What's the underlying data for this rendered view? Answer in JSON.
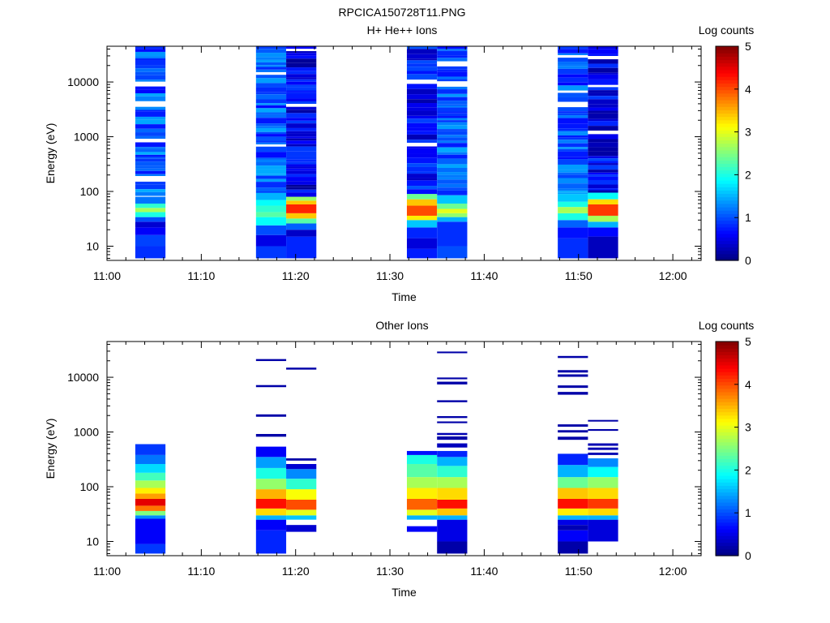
{
  "title": "RPCICA150728T11.PNG",
  "colorbar_range": [
    0,
    5
  ],
  "colorbar_ticks": [
    "0",
    "1",
    "2",
    "3",
    "4",
    "5"
  ],
  "chart_data": [
    {
      "type": "heatmap",
      "title": "H+ He++ Ions",
      "xlabel": "Time",
      "ylabel": "Energy (eV)",
      "colorbar_label": "Log counts",
      "x_ticks": [
        "11:00",
        "11:10",
        "11:20",
        "11:30",
        "11:40",
        "11:50",
        "12:00"
      ],
      "xlim": [
        "11:00",
        "12:03"
      ],
      "y_ticks": [
        "10",
        "100",
        "1000",
        "10000"
      ],
      "ylim": [
        5.5,
        45000
      ],
      "y_scale": "log",
      "colormap": "jet",
      "columns": [
        {
          "start": "11:03.0",
          "end": "11:06.2",
          "seed": 11,
          "bands": [
            {
              "lo": 6,
              "hi": 10,
              "v": 0.85
            },
            {
              "lo": 10,
              "hi": 16,
              "v": 0.95
            },
            {
              "lo": 16,
              "hi": 22,
              "v": 0.6
            },
            {
              "lo": 22,
              "hi": 28,
              "v": 0.4
            },
            {
              "lo": 28,
              "hi": 34,
              "v": 1.0
            },
            {
              "lo": 34,
              "hi": 42,
              "v": 2.0
            },
            {
              "lo": 42,
              "hi": 50,
              "v": 2.7
            },
            {
              "lo": 50,
              "hi": 60,
              "v": 2.1
            },
            {
              "lo": 60,
              "hi": 80,
              "v": 1.2
            },
            {
              "lo": 80,
              "hi": 45000,
              "v": 1.05
            }
          ]
        },
        {
          "start": "11:15.8",
          "end": "11:19.0",
          "seed": 23,
          "bands": [
            {
              "lo": 6,
              "hi": 10,
              "v": 0.9
            },
            {
              "lo": 10,
              "hi": 16,
              "v": 0.5
            },
            {
              "lo": 16,
              "hi": 24,
              "v": 1.0
            },
            {
              "lo": 24,
              "hi": 34,
              "v": 1.9
            },
            {
              "lo": 34,
              "hi": 42,
              "v": 2.3
            },
            {
              "lo": 42,
              "hi": 55,
              "v": 2.1
            },
            {
              "lo": 55,
              "hi": 70,
              "v": 1.9
            },
            {
              "lo": 70,
              "hi": 95,
              "v": 1.5
            },
            {
              "lo": 95,
              "hi": 45000,
              "v": 1.05
            }
          ]
        },
        {
          "start": "11:19.0",
          "end": "11:22.2",
          "seed": 37,
          "bands": [
            {
              "lo": 6,
              "hi": 15,
              "v": 0.8
            },
            {
              "lo": 15,
              "hi": 20,
              "v": 0.35
            },
            {
              "lo": 20,
              "hi": 26,
              "v": 1.1
            },
            {
              "lo": 26,
              "hi": 32,
              "v": 2.3
            },
            {
              "lo": 32,
              "hi": 40,
              "v": 3.4
            },
            {
              "lo": 40,
              "hi": 58,
              "v": 4.2
            },
            {
              "lo": 58,
              "hi": 68,
              "v": 3.4
            },
            {
              "lo": 68,
              "hi": 80,
              "v": 2.6
            },
            {
              "lo": 80,
              "hi": 45000,
              "v": 0.5
            }
          ]
        },
        {
          "start": "11:31.8",
          "end": "11:35.0",
          "seed": 41,
          "bands": [
            {
              "lo": 6,
              "hi": 9,
              "v": 0.75
            },
            {
              "lo": 9,
              "hi": 14,
              "v": 0.45
            },
            {
              "lo": 14,
              "hi": 22,
              "v": 0.8
            },
            {
              "lo": 22,
              "hi": 30,
              "v": 1.6
            },
            {
              "lo": 30,
              "hi": 36,
              "v": 3.2
            },
            {
              "lo": 36,
              "hi": 55,
              "v": 4.0
            },
            {
              "lo": 55,
              "hi": 72,
              "v": 3.4
            },
            {
              "lo": 72,
              "hi": 90,
              "v": 2.4
            },
            {
              "lo": 90,
              "hi": 45000,
              "v": 0.6
            }
          ]
        },
        {
          "start": "11:35.0",
          "end": "11:38.2",
          "seed": 53,
          "bands": [
            {
              "lo": 6,
              "hi": 10,
              "v": 1.0
            },
            {
              "lo": 10,
              "hi": 28,
              "v": 0.85
            },
            {
              "lo": 28,
              "hi": 34,
              "v": 1.5
            },
            {
              "lo": 34,
              "hi": 40,
              "v": 2.6
            },
            {
              "lo": 40,
              "hi": 48,
              "v": 3.0
            },
            {
              "lo": 48,
              "hi": 60,
              "v": 2.4
            },
            {
              "lo": 60,
              "hi": 85,
              "v": 1.6
            },
            {
              "lo": 85,
              "hi": 45000,
              "v": 1.05
            }
          ]
        },
        {
          "start": "11:47.8",
          "end": "11:51.0",
          "seed": 67,
          "bands": [
            {
              "lo": 6,
              "hi": 14,
              "v": 0.85
            },
            {
              "lo": 14,
              "hi": 22,
              "v": 0.7
            },
            {
              "lo": 22,
              "hi": 30,
              "v": 1.1
            },
            {
              "lo": 30,
              "hi": 40,
              "v": 2.0
            },
            {
              "lo": 40,
              "hi": 52,
              "v": 2.7
            },
            {
              "lo": 52,
              "hi": 65,
              "v": 2.0
            },
            {
              "lo": 65,
              "hi": 90,
              "v": 1.6
            },
            {
              "lo": 90,
              "hi": 45000,
              "v": 1.05
            }
          ]
        },
        {
          "start": "11:51.0",
          "end": "11:54.2",
          "seed": 79,
          "bands": [
            {
              "lo": 6,
              "hi": 15,
              "v": 0.3
            },
            {
              "lo": 15,
              "hi": 22,
              "v": 0.65
            },
            {
              "lo": 22,
              "hi": 28,
              "v": 1.5
            },
            {
              "lo": 28,
              "hi": 36,
              "v": 2.7
            },
            {
              "lo": 36,
              "hi": 58,
              "v": 4.1
            },
            {
              "lo": 58,
              "hi": 72,
              "v": 3.3
            },
            {
              "lo": 72,
              "hi": 95,
              "v": 1.9
            },
            {
              "lo": 95,
              "hi": 45000,
              "v": 0.55
            }
          ]
        }
      ]
    },
    {
      "type": "heatmap",
      "title": "Other Ions",
      "xlabel": "Time",
      "ylabel": "Energy (eV)",
      "colorbar_label": "Log counts",
      "x_ticks": [
        "11:00",
        "11:10",
        "11:20",
        "11:30",
        "11:40",
        "11:50",
        "12:00"
      ],
      "xlim": [
        "11:00",
        "12:03"
      ],
      "y_ticks": [
        "10",
        "100",
        "1000",
        "10000"
      ],
      "ylim": [
        5.5,
        45000
      ],
      "y_scale": "log",
      "colormap": "jet",
      "columns": [
        {
          "start": "11:03.0",
          "end": "11:06.2",
          "bands": [
            {
              "lo": 6,
              "hi": 9,
              "v": 0.9
            },
            {
              "lo": 9,
              "hi": 26,
              "v": 0.6
            },
            {
              "lo": 26,
              "hi": 30,
              "v": 1.3
            },
            {
              "lo": 30,
              "hi": 36,
              "v": 2.5
            },
            {
              "lo": 36,
              "hi": 45,
              "v": 3.8
            },
            {
              "lo": 45,
              "hi": 60,
              "v": 4.5
            },
            {
              "lo": 60,
              "hi": 75,
              "v": 3.6
            },
            {
              "lo": 75,
              "hi": 95,
              "v": 3.2
            },
            {
              "lo": 95,
              "hi": 130,
              "v": 2.7
            },
            {
              "lo": 130,
              "hi": 180,
              "v": 2.2
            },
            {
              "lo": 180,
              "hi": 260,
              "v": 1.7
            },
            {
              "lo": 260,
              "hi": 380,
              "v": 1.2
            },
            {
              "lo": 380,
              "hi": 600,
              "v": 0.9
            }
          ]
        },
        {
          "start": "11:15.8",
          "end": "11:19.0",
          "bands": [
            {
              "lo": 6,
              "hi": 16,
              "v": 0.8
            },
            {
              "lo": 16,
              "hi": 25,
              "v": 0.6
            },
            {
              "lo": 25,
              "hi": 30,
              "v": 1.5
            },
            {
              "lo": 30,
              "hi": 40,
              "v": 3.3
            },
            {
              "lo": 40,
              "hi": 60,
              "v": 4.3
            },
            {
              "lo": 60,
              "hi": 90,
              "v": 3.5
            },
            {
              "lo": 90,
              "hi": 140,
              "v": 2.6
            },
            {
              "lo": 140,
              "hi": 220,
              "v": 2.0
            },
            {
              "lo": 220,
              "hi": 350,
              "v": 1.4
            },
            {
              "lo": 350,
              "hi": 540,
              "v": 0.6
            },
            {
              "lo": 820,
              "hi": 920,
              "v": 0.2
            },
            {
              "lo": 1900,
              "hi": 2100,
              "v": 0.2
            },
            {
              "lo": 6600,
              "hi": 7200,
              "v": 0.2
            },
            {
              "lo": 19800,
              "hi": 21500,
              "v": 0.2
            }
          ]
        },
        {
          "start": "11:19.0",
          "end": "11:22.2",
          "bands": [
            {
              "lo": 15,
              "hi": 20,
              "v": 0.4
            },
            {
              "lo": 25,
              "hi": 30,
              "v": 1.6
            },
            {
              "lo": 30,
              "hi": 38,
              "v": 3.0
            },
            {
              "lo": 38,
              "hi": 58,
              "v": 4.0
            },
            {
              "lo": 58,
              "hi": 90,
              "v": 3.1
            },
            {
              "lo": 90,
              "hi": 140,
              "v": 2.1
            },
            {
              "lo": 140,
              "hi": 210,
              "v": 1.3
            },
            {
              "lo": 210,
              "hi": 260,
              "v": 0.4
            },
            {
              "lo": 300,
              "hi": 330,
              "v": 0.2
            },
            {
              "lo": 13800,
              "hi": 15000,
              "v": 0.2
            }
          ]
        },
        {
          "start": "11:31.8",
          "end": "11:35.0",
          "bands": [
            {
              "lo": 15,
              "hi": 19,
              "v": 0.6
            },
            {
              "lo": 25,
              "hi": 30,
              "v": 1.5
            },
            {
              "lo": 30,
              "hi": 38,
              "v": 3.0
            },
            {
              "lo": 38,
              "hi": 60,
              "v": 3.9
            },
            {
              "lo": 60,
              "hi": 95,
              "v": 3.2
            },
            {
              "lo": 95,
              "hi": 150,
              "v": 2.7
            },
            {
              "lo": 150,
              "hi": 260,
              "v": 2.3
            },
            {
              "lo": 260,
              "hi": 380,
              "v": 2.0
            },
            {
              "lo": 380,
              "hi": 450,
              "v": 0.7
            }
          ]
        },
        {
          "start": "11:35.0",
          "end": "11:38.2",
          "bands": [
            {
              "lo": 6,
              "hi": 10,
              "v": 0.2
            },
            {
              "lo": 10,
              "hi": 25,
              "v": 0.5
            },
            {
              "lo": 25,
              "hi": 30,
              "v": 1.5
            },
            {
              "lo": 30,
              "hi": 40,
              "v": 3.4
            },
            {
              "lo": 40,
              "hi": 58,
              "v": 4.3
            },
            {
              "lo": 58,
              "hi": 95,
              "v": 3.3
            },
            {
              "lo": 95,
              "hi": 150,
              "v": 2.7
            },
            {
              "lo": 150,
              "hi": 240,
              "v": 2.1
            },
            {
              "lo": 240,
              "hi": 350,
              "v": 1.5
            },
            {
              "lo": 350,
              "hi": 450,
              "v": 0.8
            },
            {
              "lo": 520,
              "hi": 620,
              "v": 0.3
            },
            {
              "lo": 720,
              "hi": 830,
              "v": 0.2
            },
            {
              "lo": 880,
              "hi": 960,
              "v": 0.25
            },
            {
              "lo": 1450,
              "hi": 1560,
              "v": 0.2
            },
            {
              "lo": 1800,
              "hi": 1950,
              "v": 0.2
            },
            {
              "lo": 3500,
              "hi": 3800,
              "v": 0.2
            },
            {
              "lo": 7400,
              "hi": 8300,
              "v": 0.2
            },
            {
              "lo": 9200,
              "hi": 9900,
              "v": 0.2
            },
            {
              "lo": 27500,
              "hi": 29500,
              "v": 0.2
            }
          ]
        },
        {
          "start": "11:47.8",
          "end": "11:51.0",
          "bands": [
            {
              "lo": 6,
              "hi": 10,
              "v": 0.2
            },
            {
              "lo": 10,
              "hi": 16,
              "v": 0.6
            },
            {
              "lo": 16,
              "hi": 20,
              "v": 0.25
            },
            {
              "lo": 20,
              "hi": 25,
              "v": 0.5
            },
            {
              "lo": 25,
              "hi": 30,
              "v": 1.5
            },
            {
              "lo": 30,
              "hi": 40,
              "v": 3.2
            },
            {
              "lo": 40,
              "hi": 60,
              "v": 4.3
            },
            {
              "lo": 60,
              "hi": 95,
              "v": 3.4
            },
            {
              "lo": 95,
              "hi": 150,
              "v": 2.4
            },
            {
              "lo": 150,
              "hi": 250,
              "v": 1.5
            },
            {
              "lo": 250,
              "hi": 400,
              "v": 0.8
            },
            {
              "lo": 720,
              "hi": 820,
              "v": 0.2
            },
            {
              "lo": 980,
              "hi": 1080,
              "v": 0.2
            },
            {
              "lo": 1250,
              "hi": 1380,
              "v": 0.2
            },
            {
              "lo": 4800,
              "hi": 5400,
              "v": 0.2
            },
            {
              "lo": 6400,
              "hi": 7100,
              "v": 0.2
            },
            {
              "lo": 10200,
              "hi": 11300,
              "v": 0.2
            },
            {
              "lo": 12200,
              "hi": 13500,
              "v": 0.2
            },
            {
              "lo": 22500,
              "hi": 24500,
              "v": 0.2
            }
          ]
        },
        {
          "start": "11:51.0",
          "end": "11:54.2",
          "bands": [
            {
              "lo": 10,
              "hi": 25,
              "v": 0.45
            },
            {
              "lo": 25,
              "hi": 30,
              "v": 1.5
            },
            {
              "lo": 30,
              "hi": 40,
              "v": 3.3
            },
            {
              "lo": 40,
              "hi": 60,
              "v": 4.1
            },
            {
              "lo": 60,
              "hi": 95,
              "v": 3.3
            },
            {
              "lo": 95,
              "hi": 150,
              "v": 2.6
            },
            {
              "lo": 150,
              "hi": 230,
              "v": 1.9
            },
            {
              "lo": 230,
              "hi": 330,
              "v": 1.3
            },
            {
              "lo": 380,
              "hi": 420,
              "v": 0.25
            },
            {
              "lo": 470,
              "hi": 520,
              "v": 0.25
            },
            {
              "lo": 560,
              "hi": 620,
              "v": 0.25
            },
            {
              "lo": 1050,
              "hi": 1130,
              "v": 0.2
            },
            {
              "lo": 1550,
              "hi": 1660,
              "v": 0.2
            }
          ]
        }
      ]
    }
  ]
}
